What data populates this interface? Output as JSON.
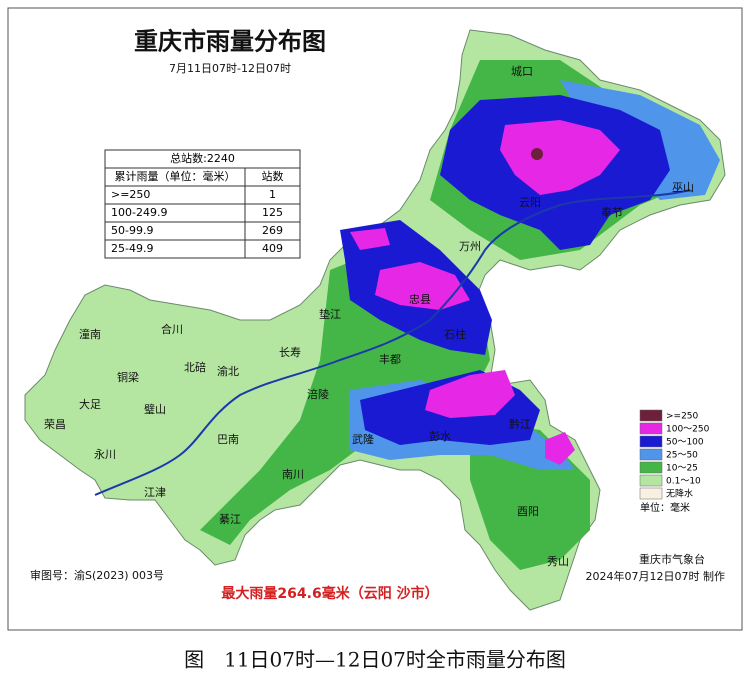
{
  "title": "重庆市雨量分布图",
  "subtitle": "7月11日07时-12日07时",
  "table": {
    "header": "总站数:2240",
    "columns": [
      "累计雨量（单位：毫米）",
      "站数"
    ],
    "rows": [
      [
        ">=250",
        1
      ],
      [
        "100-249.9",
        125
      ],
      [
        "50-99.9",
        269
      ],
      [
        "25-49.9",
        409
      ]
    ]
  },
  "legend": {
    "items": [
      {
        "label": ">=250",
        "color": "#6e1f3c"
      },
      {
        "label": "100～250",
        "color": "#e628e6"
      },
      {
        "label": "50～100",
        "color": "#1a1ad2"
      },
      {
        "label": "25～50",
        "color": "#4f95ea"
      },
      {
        "label": "10～25",
        "color": "#44b648"
      },
      {
        "label": "0.1～10",
        "color": "#b4e6a2"
      },
      {
        "label": "无降水",
        "color": "#f8f1e2"
      }
    ],
    "unit": "单位：毫米"
  },
  "districts": [
    "城口",
    "巫山",
    "奉节",
    "云阳",
    "万州",
    "忠县",
    "石柱",
    "垫江",
    "长寿",
    "丰都",
    "涪陵",
    "武隆",
    "彭水",
    "黔江",
    "酉阳",
    "秀山",
    "南川",
    "綦江",
    "江津",
    "永川",
    "荣昌",
    "大足",
    "铜梁",
    "潼南",
    "合川",
    "璧山",
    "北碚",
    "渝北",
    "巴南"
  ],
  "footer": {
    "approval": "审图号：渝S(2023) 003号",
    "max_rain": "最大雨量264.6毫米（云阳 沙市）",
    "agency": "重庆市气象台",
    "made": "2024年07月12日07时 制作"
  },
  "caption": "图　11日07时—12日07时全市雨量分布图"
}
